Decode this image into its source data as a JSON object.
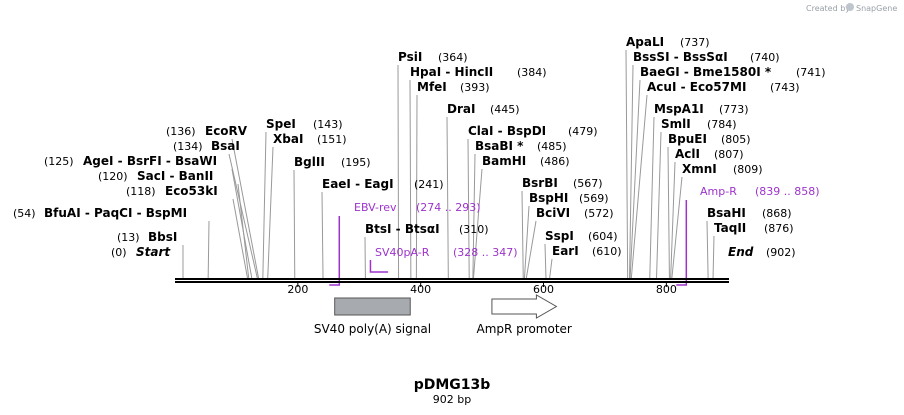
{
  "credit": {
    "prefix": "Created by",
    "brand": "SnapGene"
  },
  "plasmid": {
    "name": "pDMG13b",
    "length_label": "902 bp",
    "length": 902
  },
  "axis": {
    "ticks": [
      {
        "value": 200,
        "label": "200"
      },
      {
        "value": 400,
        "label": "400"
      },
      {
        "value": 600,
        "label": "600"
      },
      {
        "value": 800,
        "label": "800"
      }
    ]
  },
  "colors": {
    "primer": "#9d33cc",
    "feature_signal": "#a7abb0",
    "feature_promoter": "#ffffff",
    "site_line": "#999999"
  },
  "sites": [
    {
      "id": "start",
      "name": "Start",
      "pos_label": "(0)",
      "pos": 0
    },
    {
      "id": "bbsi",
      "name": "BbsI",
      "pos_label": "(13)",
      "pos": 13
    },
    {
      "id": "bfuai",
      "name": "BfuAI - PaqCI - BspMI",
      "pos_label": "(54)",
      "pos": 54
    },
    {
      "id": "eco53ki",
      "name": "Eco53kI",
      "pos_label": "(118)",
      "pos": 118
    },
    {
      "id": "saci",
      "name": "SacI - BanII",
      "pos_label": "(120)",
      "pos": 120
    },
    {
      "id": "agei",
      "name": "AgeI - BsrFI - BsaWI",
      "pos_label": "(125)",
      "pos": 125
    },
    {
      "id": "bsai",
      "name": "BsaI",
      "pos_label": "(134)",
      "pos": 134
    },
    {
      "id": "ecorv",
      "name": "EcoRV",
      "pos_label": "(136)",
      "pos": 136
    },
    {
      "id": "spei",
      "name": "SpeI",
      "pos_label": "(143)",
      "pos": 143
    },
    {
      "id": "xbai",
      "name": "XbaI",
      "pos_label": "(151)",
      "pos": 151
    },
    {
      "id": "bglii",
      "name": "BglII",
      "pos_label": "(195)",
      "pos": 195
    },
    {
      "id": "eaei",
      "name": "EaeI - EagI",
      "pos_label": "(241)",
      "pos": 241
    },
    {
      "id": "btsi",
      "name": "BtsI - BtsαI",
      "pos_label": "(310)",
      "pos": 310
    },
    {
      "id": "psii",
      "name": "PsiI",
      "pos_label": "(364)",
      "pos": 364
    },
    {
      "id": "hpai",
      "name": "HpaI - HincII",
      "pos_label": "(384)",
      "pos": 384
    },
    {
      "id": "mfei",
      "name": "MfeI",
      "pos_label": "(393)",
      "pos": 393
    },
    {
      "id": "drai",
      "name": "DraI",
      "pos_label": "(445)",
      "pos": 445
    },
    {
      "id": "clai",
      "name": "ClaI - BspDI",
      "pos_label": "(479)",
      "pos": 479
    },
    {
      "id": "bsabi",
      "name": "BsaBI *",
      "pos_label": "(485)",
      "pos": 485
    },
    {
      "id": "bamhi",
      "name": "BamHI",
      "pos_label": "(486)",
      "pos": 486
    },
    {
      "id": "bsrbi",
      "name": "BsrBI",
      "pos_label": "(567)",
      "pos": 567
    },
    {
      "id": "bsphi",
      "name": "BspHI",
      "pos_label": "(569)",
      "pos": 569
    },
    {
      "id": "bcivi",
      "name": "BciVI",
      "pos_label": "(572)",
      "pos": 572
    },
    {
      "id": "sspi",
      "name": "SspI",
      "pos_label": "(604)",
      "pos": 604
    },
    {
      "id": "eari",
      "name": "EarI",
      "pos_label": "(610)",
      "pos": 610
    },
    {
      "id": "apali",
      "name": "ApaLI",
      "pos_label": "(737)",
      "pos": 737
    },
    {
      "id": "bsssi",
      "name": "BssSI - BssSαI",
      "pos_label": "(740)",
      "pos": 740
    },
    {
      "id": "baegi",
      "name": "BaeGI - Bme1580I *",
      "pos_label": "(741)",
      "pos": 741
    },
    {
      "id": "acui",
      "name": "AcuI - Eco57MI",
      "pos_label": "(743)",
      "pos": 743
    },
    {
      "id": "mspa1i",
      "name": "MspA1I",
      "pos_label": "(773)",
      "pos": 773
    },
    {
      "id": "smli",
      "name": "SmlI",
      "pos_label": "(784)",
      "pos": 784
    },
    {
      "id": "bpuei",
      "name": "BpuEI",
      "pos_label": "(805)",
      "pos": 805
    },
    {
      "id": "acli",
      "name": "AclI",
      "pos_label": "(807)",
      "pos": 807
    },
    {
      "id": "xmni",
      "name": "XmnI",
      "pos_label": "(809)",
      "pos": 809
    },
    {
      "id": "bsahi",
      "name": "BsaHI",
      "pos_label": "(868)",
      "pos": 868
    },
    {
      "id": "taqii",
      "name": "TaqII",
      "pos_label": "(876)",
      "pos": 876
    },
    {
      "id": "end",
      "name": "End",
      "pos_label": "(902)",
      "pos": 902
    }
  ],
  "primers": [
    {
      "id": "ebv-rev",
      "name": "EBV-rev",
      "range_label": "(274 .. 293)",
      "start": 274,
      "end": 293,
      "direction": "reverse"
    },
    {
      "id": "sv40pa-r",
      "name": "SV40pA-R",
      "range_label": "(328 .. 347)",
      "start": 328,
      "end": 347,
      "direction": "reverse"
    },
    {
      "id": "amp-r",
      "name": "Amp-R",
      "range_label": "(839 .. 858)",
      "start": 839,
      "end": 858,
      "direction": "reverse"
    }
  ],
  "features": [
    {
      "id": "sv40-polya-signal",
      "name": "SV40 poly(A) signal",
      "start": 260,
      "end": 383,
      "shape": "box"
    },
    {
      "id": "ampr-promoter",
      "name": "AmpR promoter",
      "start": 516,
      "end": 621,
      "shape": "arrow"
    }
  ]
}
